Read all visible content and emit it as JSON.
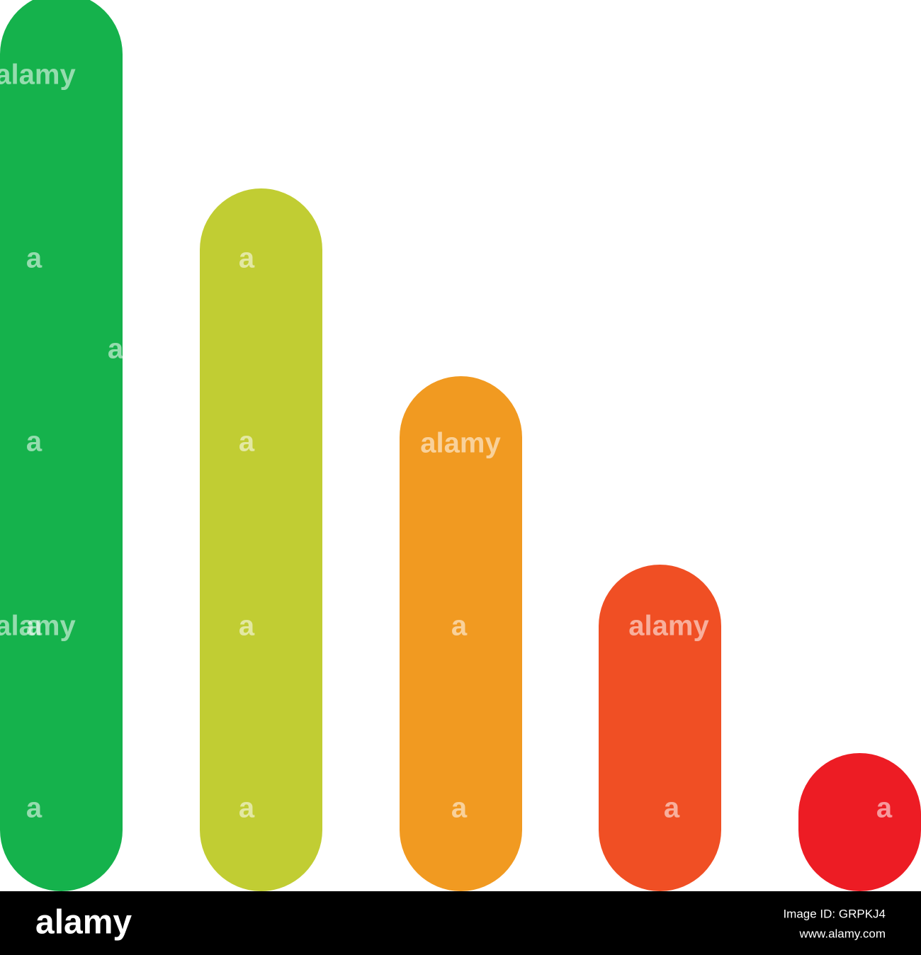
{
  "watermarks": [
    "alamy",
    "alamy",
    "alamy",
    "alamy",
    "a",
    "a",
    "a",
    "a",
    "a",
    "a",
    "a",
    "a",
    "a",
    "a",
    "a",
    "a",
    "a"
  ],
  "footer": {
    "brand": "alamy",
    "image_id": "Image ID: GRPKJ4",
    "url": "www.alamy.com"
  }
}
